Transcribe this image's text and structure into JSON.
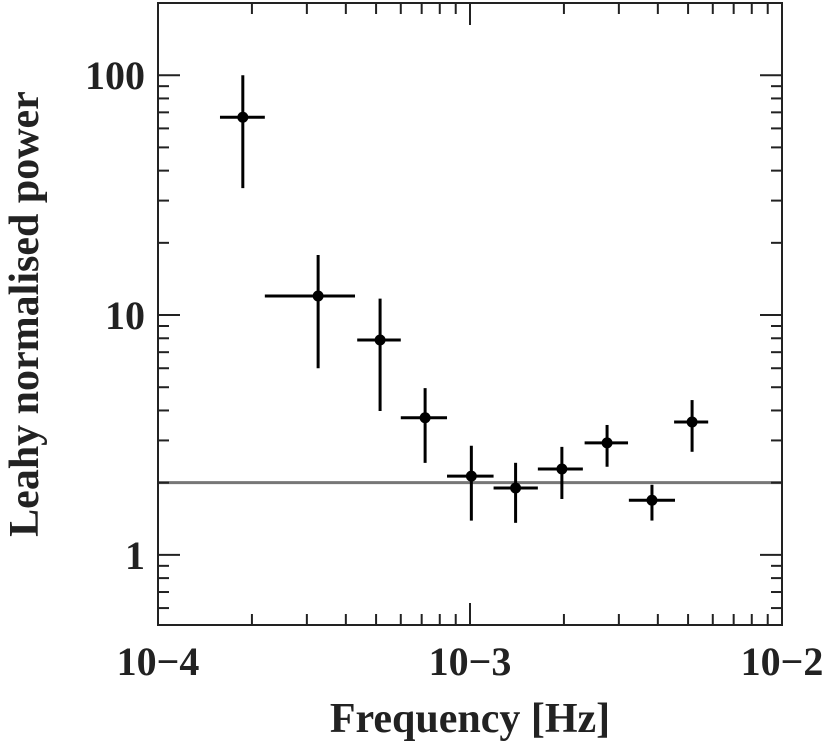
{
  "chart_data": {
    "type": "scatter",
    "xlabel": "Frequency [Hz]",
    "ylabel": "Leahy normalised power",
    "xscale": "log",
    "yscale": "log",
    "xlim": [
      0.0001,
      0.01
    ],
    "ylim": [
      0.51,
      200
    ],
    "xticks": [
      {
        "value": 0.0001,
        "label": "10−4"
      },
      {
        "value": 0.001,
        "label": "10−3"
      },
      {
        "value": 0.01,
        "label": "10−2"
      }
    ],
    "yticks": [
      1,
      10,
      100
    ],
    "xminorticks": [
      0.0002,
      0.0003,
      0.0004,
      0.0005,
      0.0006,
      0.0007,
      0.0008,
      0.0009,
      0.002,
      0.003,
      0.004,
      0.005,
      0.006,
      0.007,
      0.008,
      0.009
    ],
    "yminorticks": [
      0.6,
      0.7,
      0.8,
      0.9,
      2,
      3,
      4,
      5,
      6,
      7,
      8,
      9,
      20,
      30,
      40,
      50,
      60,
      70,
      80,
      90
    ],
    "hline": {
      "value": 2,
      "color": "#777777"
    },
    "series": [
      {
        "color": "#000000",
        "x": [
          0.000187,
          0.000326,
          0.000515,
          0.000718,
          0.00101,
          0.0014,
          0.00197,
          0.00275,
          0.00383,
          0.00515
        ],
        "x_low": [
          0.000158,
          0.00022,
          0.000435,
          0.0006,
          0.000844,
          0.00119,
          0.00165,
          0.00233,
          0.00323,
          0.00451
        ],
        "x_high": [
          0.00022,
          0.000428,
          0.0006,
          0.000844,
          0.00119,
          0.00165,
          0.0023,
          0.00321,
          0.00454,
          0.0058
        ],
        "values": [
          66.8,
          12.0,
          7.87,
          3.73,
          2.13,
          1.9,
          2.28,
          2.93,
          1.69,
          3.58
        ],
        "y_low": [
          33.8,
          6.0,
          3.98,
          2.42,
          1.39,
          1.36,
          1.71,
          2.33,
          1.39,
          2.69
        ],
        "y_high": [
          100,
          17.8,
          11.7,
          4.96,
          2.85,
          2.42,
          2.82,
          3.48,
          1.96,
          4.42
        ]
      }
    ]
  }
}
